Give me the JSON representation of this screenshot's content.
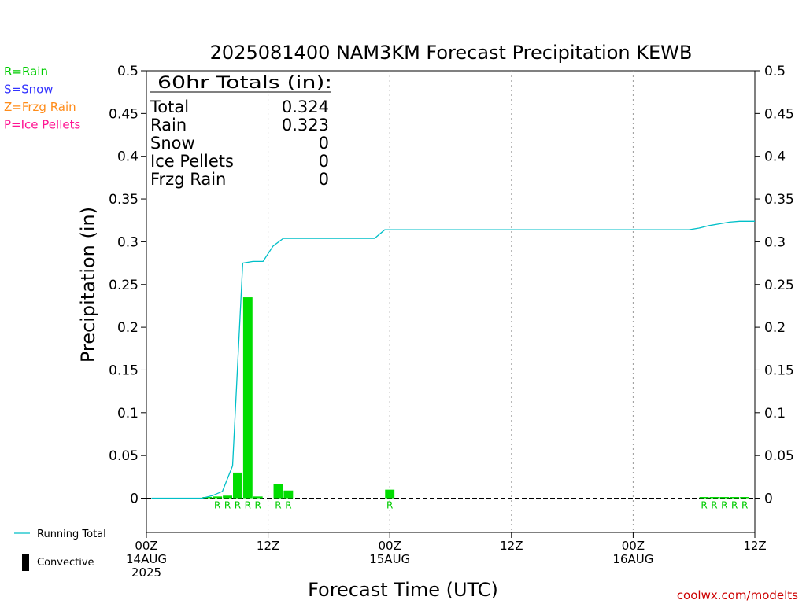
{
  "chart_data": {
    "type": "bar",
    "title": "2025081400 NAM3KM Forecast Precipitation KEWB",
    "xlabel": "Forecast Time (UTC)",
    "ylabel": "Precipitation (in)",
    "ylim": [
      -0.04,
      0.5
    ],
    "xlim_hours": [
      0,
      60
    ],
    "y_ticks": [
      0,
      0.05,
      0.1,
      0.15,
      0.2,
      0.25,
      0.3,
      0.35,
      0.4,
      0.45,
      0.5
    ],
    "y_tick_labels": [
      "0",
      "0.05",
      "0.1",
      "0.15",
      "0.2",
      "0.25",
      "0.3",
      "0.35",
      "0.4",
      "0.45",
      "0.5"
    ],
    "x_ticks": [
      {
        "hour": 0,
        "lines": [
          "00Z",
          "14AUG",
          "2025"
        ]
      },
      {
        "hour": 12,
        "lines": [
          "12Z"
        ]
      },
      {
        "hour": 24,
        "lines": [
          "00Z",
          "15AUG"
        ]
      },
      {
        "hour": 36,
        "lines": [
          "12Z"
        ]
      },
      {
        "hour": 48,
        "lines": [
          "00Z",
          "16AUG"
        ]
      },
      {
        "hour": 60,
        "lines": [
          "12Z"
        ]
      }
    ],
    "grid": "vertical dotted at 12-hour intervals",
    "precip_type_legend": [
      {
        "label": "R=Rain",
        "color": "#00cc00"
      },
      {
        "label": "S=Snow",
        "color": "#3333ff"
      },
      {
        "label": "Z=Frzg Rain",
        "color": "#ff8c1a"
      },
      {
        "label": "P=Ice Pellets",
        "color": "#ff1493"
      }
    ],
    "bottom_legend": [
      {
        "label": "Running Total",
        "color": "#00bfc8",
        "kind": "line"
      },
      {
        "label": "Convective",
        "color": "#000000",
        "kind": "bar"
      }
    ],
    "totals_box": {
      "header": "60hr Totals (in):",
      "rows": [
        {
          "label": "Total",
          "value": "0.324"
        },
        {
          "label": "Rain",
          "value": "0.323"
        },
        {
          "label": "Snow",
          "value": "0"
        },
        {
          "label": "Ice Pellets",
          "value": "0"
        },
        {
          "label": "Frzg Rain",
          "value": "0"
        }
      ]
    },
    "series": [
      {
        "name": "Precipitation",
        "kind": "bar",
        "color": "#00dd00",
        "points": [
          {
            "hour": 6,
            "value": 0.001
          },
          {
            "hour": 7,
            "value": 0.002
          },
          {
            "hour": 8,
            "value": 0.003
          },
          {
            "hour": 9,
            "value": 0.03
          },
          {
            "hour": 10,
            "value": 0.235
          },
          {
            "hour": 11,
            "value": 0.002
          },
          {
            "hour": 13,
            "value": 0.017
          },
          {
            "hour": 14,
            "value": 0.009
          },
          {
            "hour": 24,
            "value": 0.01
          },
          {
            "hour": 55,
            "value": 0.001
          },
          {
            "hour": 56,
            "value": 0.001
          },
          {
            "hour": 57,
            "value": 0.001
          },
          {
            "hour": 58,
            "value": 0.001
          },
          {
            "hour": 59,
            "value": 0.001
          }
        ]
      },
      {
        "name": "Running Total",
        "kind": "line",
        "color": "#00bfc8",
        "points": [
          {
            "hour": 0.5,
            "value": 0
          },
          {
            "hour": 5.5,
            "value": 0
          },
          {
            "hour": 6.5,
            "value": 0.003
          },
          {
            "hour": 7.5,
            "value": 0.008
          },
          {
            "hour": 8.5,
            "value": 0.038
          },
          {
            "hour": 9.5,
            "value": 0.275
          },
          {
            "hour": 10.5,
            "value": 0.277
          },
          {
            "hour": 11.5,
            "value": 0.277
          },
          {
            "hour": 12.5,
            "value": 0.295
          },
          {
            "hour": 13.5,
            "value": 0.304
          },
          {
            "hour": 22.5,
            "value": 0.304
          },
          {
            "hour": 23.5,
            "value": 0.314
          },
          {
            "hour": 53.5,
            "value": 0.314
          },
          {
            "hour": 54.5,
            "value": 0.316
          },
          {
            "hour": 55.5,
            "value": 0.319
          },
          {
            "hour": 56.5,
            "value": 0.321
          },
          {
            "hour": 57.5,
            "value": 0.323
          },
          {
            "hour": 58.5,
            "value": 0.324
          },
          {
            "hour": 60,
            "value": 0.324
          }
        ]
      }
    ],
    "ptype_markers": [
      {
        "hour": 7,
        "label": "R"
      },
      {
        "hour": 8,
        "label": "R"
      },
      {
        "hour": 9,
        "label": "R"
      },
      {
        "hour": 10,
        "label": "R"
      },
      {
        "hour": 11,
        "label": "R"
      },
      {
        "hour": 13,
        "label": "R"
      },
      {
        "hour": 14,
        "label": "R"
      },
      {
        "hour": 24,
        "label": "R"
      },
      {
        "hour": 55,
        "label": "R"
      },
      {
        "hour": 56,
        "label": "R"
      },
      {
        "hour": 57,
        "label": "R"
      },
      {
        "hour": 58,
        "label": "R"
      },
      {
        "hour": 59,
        "label": "R"
      }
    ],
    "credit": "coolwx.com/modelts",
    "credit_color": "#cc0000"
  }
}
